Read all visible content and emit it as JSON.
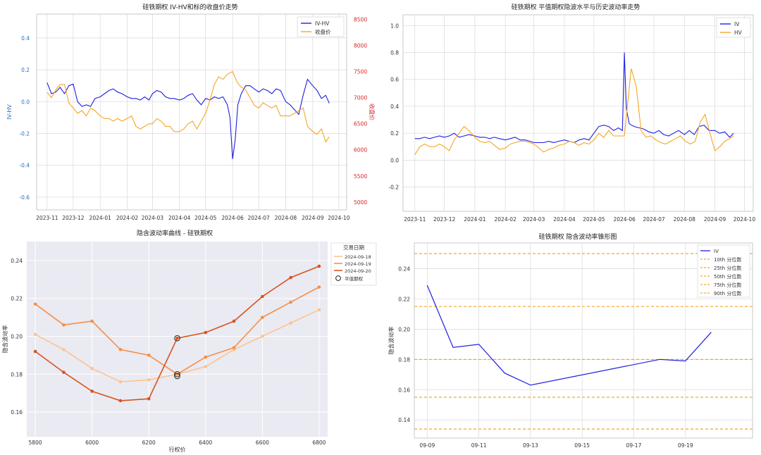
{
  "chart_data": [
    {
      "type": "line",
      "title": "硅铁期权 IV-HV和标的收盘价走势",
      "ylabel": "IV-HV",
      "y2label": "收盘价",
      "xlim": [
        "2023-10-20",
        "2024-10-10"
      ],
      "ylim": [
        -0.68,
        0.55
      ],
      "y2lim": [
        4850,
        8600
      ],
      "x_ticks": [
        "2023-11",
        "2023-12",
        "2024-01",
        "2024-02",
        "2024-03",
        "2024-04",
        "2024-05",
        "2024-06",
        "2024-07",
        "2024-08",
        "2024-09",
        "2024-10"
      ],
      "y_ticks": [
        "-0.6",
        "-0.4",
        "-0.2",
        "0.0",
        "0.2",
        "0.4"
      ],
      "y2_ticks": [
        "5000",
        "5500",
        "6000",
        "6500",
        "7000",
        "7500",
        "8000",
        "8500"
      ],
      "legend_position": "top-right",
      "series": [
        {
          "name": "IV-HV",
          "color": "#1f1fe0",
          "axis": "left",
          "x": [
            "2023-11-01",
            "2023-11-06",
            "2023-11-11",
            "2023-11-16",
            "2023-11-21",
            "2023-11-26",
            "2023-12-01",
            "2023-12-06",
            "2023-12-11",
            "2023-12-16",
            "2023-12-21",
            "2023-12-26",
            "2024-01-01",
            "2024-01-06",
            "2024-01-11",
            "2024-01-16",
            "2024-01-21",
            "2024-01-26",
            "2024-02-01",
            "2024-02-06",
            "2024-02-11",
            "2024-02-16",
            "2024-02-21",
            "2024-02-26",
            "2024-03-01",
            "2024-03-06",
            "2024-03-11",
            "2024-03-16",
            "2024-03-21",
            "2024-03-26",
            "2024-04-01",
            "2024-04-06",
            "2024-04-11",
            "2024-04-16",
            "2024-04-21",
            "2024-04-26",
            "2024-05-01",
            "2024-05-06",
            "2024-05-11",
            "2024-05-16",
            "2024-05-21",
            "2024-05-26",
            "2024-05-29",
            "2024-06-01",
            "2024-06-04",
            "2024-06-07",
            "2024-06-11",
            "2024-06-16",
            "2024-06-21",
            "2024-06-26",
            "2024-07-01",
            "2024-07-06",
            "2024-07-11",
            "2024-07-16",
            "2024-07-21",
            "2024-07-26",
            "2024-08-01",
            "2024-08-06",
            "2024-08-11",
            "2024-08-16",
            "2024-08-21",
            "2024-08-26",
            "2024-09-01",
            "2024-09-06",
            "2024-09-11",
            "2024-09-16",
            "2024-09-20"
          ],
          "y": [
            0.12,
            0.05,
            0.06,
            0.09,
            0.05,
            0.1,
            0.11,
            0.0,
            -0.03,
            -0.02,
            -0.03,
            0.02,
            0.03,
            0.05,
            0.07,
            0.08,
            0.06,
            0.05,
            0.03,
            0.02,
            0.02,
            0.01,
            0.03,
            0.01,
            0.05,
            0.07,
            0.06,
            0.03,
            0.02,
            0.02,
            0.01,
            0.02,
            0.04,
            0.05,
            0.01,
            -0.02,
            0.02,
            0.01,
            0.03,
            0.02,
            0.03,
            -0.02,
            -0.1,
            -0.36,
            -0.24,
            -0.02,
            0.05,
            0.1,
            0.1,
            0.08,
            0.06,
            0.08,
            0.07,
            0.05,
            0.08,
            0.07,
            0.0,
            -0.02,
            -0.05,
            -0.08,
            0.04,
            0.14,
            0.1,
            0.07,
            0.02,
            0.04,
            -0.01
          ]
        },
        {
          "name": "收盘价",
          "color": "#f5a623",
          "axis": "right",
          "x": [
            "2023-11-01",
            "2023-11-06",
            "2023-11-11",
            "2023-11-16",
            "2023-11-21",
            "2023-11-26",
            "2023-12-01",
            "2023-12-06",
            "2023-12-11",
            "2023-12-16",
            "2023-12-21",
            "2023-12-26",
            "2024-01-01",
            "2024-01-06",
            "2024-01-11",
            "2024-01-16",
            "2024-01-21",
            "2024-01-26",
            "2024-02-01",
            "2024-02-06",
            "2024-02-11",
            "2024-02-16",
            "2024-02-21",
            "2024-02-26",
            "2024-03-01",
            "2024-03-06",
            "2024-03-11",
            "2024-03-16",
            "2024-03-21",
            "2024-03-26",
            "2024-04-01",
            "2024-04-06",
            "2024-04-11",
            "2024-04-16",
            "2024-04-21",
            "2024-04-26",
            "2024-05-01",
            "2024-05-06",
            "2024-05-11",
            "2024-05-16",
            "2024-05-21",
            "2024-05-26",
            "2024-06-01",
            "2024-06-06",
            "2024-06-11",
            "2024-06-16",
            "2024-06-21",
            "2024-06-26",
            "2024-07-01",
            "2024-07-06",
            "2024-07-11",
            "2024-07-16",
            "2024-07-21",
            "2024-07-26",
            "2024-08-01",
            "2024-08-06",
            "2024-08-11",
            "2024-08-16",
            "2024-08-21",
            "2024-08-26",
            "2024-09-01",
            "2024-09-06",
            "2024-09-11",
            "2024-09-16",
            "2024-09-20"
          ],
          "y": [
            7100,
            7000,
            7150,
            7250,
            7250,
            6900,
            6800,
            6700,
            6750,
            6650,
            6800,
            6750,
            6650,
            6600,
            6600,
            6550,
            6600,
            6550,
            6600,
            6650,
            6450,
            6400,
            6450,
            6500,
            6500,
            6600,
            6550,
            6450,
            6450,
            6350,
            6350,
            6400,
            6500,
            6550,
            6400,
            6550,
            6700,
            6950,
            7250,
            7400,
            7350,
            7450,
            7500,
            7300,
            7200,
            7150,
            7000,
            6850,
            6800,
            6900,
            6850,
            6800,
            6850,
            6650,
            6650,
            6650,
            6700,
            6750,
            6800,
            6450,
            6350,
            6300,
            6400,
            6150,
            6250
          ]
        }
      ]
    },
    {
      "type": "line",
      "title": "硅铁期权 平值期权隐波水平与历史波动率走势",
      "xlim": [
        "2023-10-20",
        "2024-10-10"
      ],
      "ylim": [
        -0.38,
        1.08
      ],
      "x_ticks": [
        "2023-11",
        "2023-12",
        "2024-01",
        "2024-02",
        "2024-03",
        "2024-04",
        "2024-05",
        "2024-06",
        "2024-07",
        "2024-08",
        "2024-09",
        "2024-10"
      ],
      "y_ticks": [
        "-0.2",
        "0.0",
        "0.2",
        "0.4",
        "0.6",
        "0.8",
        "1.0"
      ],
      "legend_position": "top-right",
      "series": [
        {
          "name": "IV",
          "color": "#1f1fe0",
          "x": [
            "2023-11-01",
            "2023-11-06",
            "2023-11-11",
            "2023-11-16",
            "2023-11-21",
            "2023-11-26",
            "2023-12-01",
            "2023-12-06",
            "2023-12-11",
            "2023-12-16",
            "2023-12-21",
            "2023-12-26",
            "2024-01-01",
            "2024-01-06",
            "2024-01-11",
            "2024-01-16",
            "2024-01-21",
            "2024-01-26",
            "2024-02-01",
            "2024-02-06",
            "2024-02-11",
            "2024-02-16",
            "2024-02-21",
            "2024-02-26",
            "2024-03-01",
            "2024-03-06",
            "2024-03-11",
            "2024-03-16",
            "2024-03-21",
            "2024-03-26",
            "2024-04-01",
            "2024-04-06",
            "2024-04-11",
            "2024-04-16",
            "2024-04-21",
            "2024-04-26",
            "2024-05-01",
            "2024-05-06",
            "2024-05-11",
            "2024-05-16",
            "2024-05-21",
            "2024-05-26",
            "2024-05-30",
            "2024-06-01",
            "2024-06-03",
            "2024-06-06",
            "2024-06-11",
            "2024-06-16",
            "2024-06-21",
            "2024-06-26",
            "2024-07-01",
            "2024-07-06",
            "2024-07-11",
            "2024-07-16",
            "2024-07-21",
            "2024-07-26",
            "2024-08-01",
            "2024-08-06",
            "2024-08-11",
            "2024-08-16",
            "2024-08-21",
            "2024-08-26",
            "2024-09-01",
            "2024-09-06",
            "2024-09-11",
            "2024-09-16",
            "2024-09-20"
          ],
          "y": [
            0.16,
            0.16,
            0.17,
            0.16,
            0.17,
            0.18,
            0.17,
            0.18,
            0.2,
            0.17,
            0.18,
            0.19,
            0.18,
            0.17,
            0.17,
            0.16,
            0.17,
            0.16,
            0.15,
            0.16,
            0.17,
            0.15,
            0.15,
            0.14,
            0.13,
            0.13,
            0.13,
            0.14,
            0.13,
            0.14,
            0.15,
            0.14,
            0.13,
            0.15,
            0.16,
            0.15,
            0.2,
            0.25,
            0.26,
            0.25,
            0.22,
            0.24,
            0.22,
            0.8,
            0.38,
            0.27,
            0.25,
            0.24,
            0.23,
            0.21,
            0.2,
            0.22,
            0.19,
            0.18,
            0.2,
            0.22,
            0.19,
            0.22,
            0.19,
            0.25,
            0.26,
            0.22,
            0.22,
            0.2,
            0.21,
            0.17,
            0.2
          ]
        },
        {
          "name": "HV",
          "color": "#f5a623",
          "x": [
            "2023-11-01",
            "2023-11-06",
            "2023-11-11",
            "2023-11-16",
            "2023-11-21",
            "2023-11-26",
            "2023-12-01",
            "2023-12-06",
            "2023-12-11",
            "2023-12-16",
            "2023-12-21",
            "2023-12-26",
            "2024-01-01",
            "2024-01-06",
            "2024-01-11",
            "2024-01-16",
            "2024-01-21",
            "2024-01-26",
            "2024-02-01",
            "2024-02-06",
            "2024-02-11",
            "2024-02-16",
            "2024-02-21",
            "2024-02-26",
            "2024-03-01",
            "2024-03-06",
            "2024-03-11",
            "2024-03-16",
            "2024-03-21",
            "2024-03-26",
            "2024-04-01",
            "2024-04-06",
            "2024-04-11",
            "2024-04-16",
            "2024-04-21",
            "2024-04-26",
            "2024-05-01",
            "2024-05-06",
            "2024-05-11",
            "2024-05-16",
            "2024-05-21",
            "2024-05-26",
            "2024-06-01",
            "2024-06-04",
            "2024-06-08",
            "2024-06-13",
            "2024-06-18",
            "2024-06-23",
            "2024-06-28",
            "2024-07-03",
            "2024-07-08",
            "2024-07-13",
            "2024-07-18",
            "2024-07-23",
            "2024-07-28",
            "2024-08-02",
            "2024-08-07",
            "2024-08-12",
            "2024-08-17",
            "2024-08-22",
            "2024-08-27",
            "2024-09-01",
            "2024-09-06",
            "2024-09-11",
            "2024-09-16",
            "2024-09-20"
          ],
          "y": [
            0.04,
            0.1,
            0.12,
            0.1,
            0.1,
            0.12,
            0.1,
            0.07,
            0.15,
            0.2,
            0.25,
            0.22,
            0.17,
            0.14,
            0.13,
            0.14,
            0.11,
            0.08,
            0.09,
            0.12,
            0.13,
            0.14,
            0.14,
            0.13,
            0.12,
            0.09,
            0.06,
            0.08,
            0.09,
            0.11,
            0.12,
            0.14,
            0.13,
            0.11,
            0.13,
            0.12,
            0.15,
            0.2,
            0.17,
            0.22,
            0.18,
            0.18,
            0.18,
            0.4,
            0.68,
            0.55,
            0.22,
            0.17,
            0.18,
            0.15,
            0.13,
            0.12,
            0.14,
            0.16,
            0.18,
            0.14,
            0.12,
            0.14,
            0.28,
            0.34,
            0.2,
            0.07,
            0.1,
            0.14,
            0.16,
            0.18
          ]
        }
      ]
    },
    {
      "type": "line",
      "title": "隐含波动率曲线 - 硅铁期权",
      "xlabel": "行权价",
      "ylabel": "隐含波动率",
      "xlim": [
        5770,
        6830
      ],
      "ylim": [
        0.147,
        0.25
      ],
      "x_ticks": [
        "5800",
        "6000",
        "6200",
        "6400",
        "6600",
        "6800"
      ],
      "y_ticks": [
        "0.16",
        "0.18",
        "0.20",
        "0.22",
        "0.24"
      ],
      "legend_title": "交易日期",
      "legend_position": "outside-right",
      "categories_x": [
        5800,
        5900,
        6000,
        6100,
        6200,
        6300,
        6400,
        6500,
        6600,
        6700,
        6800
      ],
      "series": [
        {
          "name": "2024-09-18",
          "color": "#fdc391",
          "y": [
            0.201,
            0.193,
            0.183,
            0.176,
            0.177,
            0.18,
            0.184,
            0.193,
            0.2,
            0.207,
            0.214
          ]
        },
        {
          "name": "2024-09-19",
          "color": "#f58f47",
          "y": [
            0.217,
            0.206,
            0.208,
            0.193,
            0.19,
            0.18,
            0.189,
            0.194,
            0.21,
            0.218,
            0.226
          ]
        },
        {
          "name": "2024-09-20",
          "color": "#d9531e",
          "y": [
            0.192,
            0.181,
            0.171,
            0.166,
            0.167,
            0.199,
            0.202,
            0.208,
            0.221,
            0.231,
            0.237
          ]
        }
      ],
      "atm_marker": {
        "name": "平值期权",
        "points": [
          {
            "x": 6300,
            "y": 0.199
          },
          {
            "x": 6300,
            "y": 0.18
          },
          {
            "x": 6300,
            "y": 0.179
          }
        ]
      }
    },
    {
      "type": "line",
      "title": "硅铁期权 隐含波动率锥形图",
      "ylabel": "隐含波动率",
      "xlim": [
        "2024-09-08.5",
        "2024-09-21.6"
      ],
      "ylim": [
        0.128,
        0.257
      ],
      "x_ticks": [
        "09-09",
        "09-11",
        "09-13",
        "09-15",
        "09-17",
        "09-19"
      ],
      "y_ticks": [
        "0.14",
        "0.16",
        "0.18",
        "0.20",
        "0.22",
        "0.24"
      ],
      "legend_position": "top-right",
      "series": [
        {
          "name": "IV",
          "color": "#1f1fe0",
          "x": [
            "2024-09-09",
            "2024-09-10",
            "2024-09-11",
            "2024-09-12",
            "2024-09-13",
            "2024-09-18",
            "2024-09-19",
            "2024-09-20"
          ],
          "y": [
            0.229,
            0.188,
            0.19,
            0.171,
            0.163,
            0.18,
            0.179,
            0.198
          ]
        }
      ],
      "percentiles": [
        {
          "name": "10th 分位数",
          "color": "#f5a623",
          "value": 0.134
        },
        {
          "name": "25th 分位数",
          "color": "#f5a623",
          "value": 0.155
        },
        {
          "name": "50th 分位数",
          "color": "#f5a623",
          "value": 0.18
        },
        {
          "name": "75th 分位数",
          "color": "#f5a623",
          "value": 0.215
        },
        {
          "name": "90th 分位数",
          "color": "#f5a623",
          "value": 0.25
        }
      ]
    }
  ]
}
